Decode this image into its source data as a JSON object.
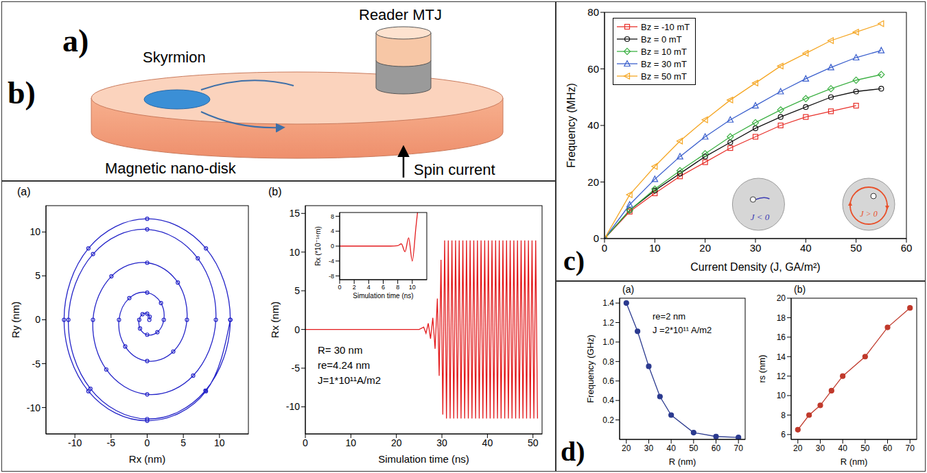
{
  "panel_letters": [
    "a)",
    "b)",
    "c)",
    "d)"
  ],
  "diagram": {
    "labels": {
      "skyrmion": "Skyrmion",
      "reader": "Reader MTJ",
      "disk": "Magnetic nano-disk",
      "current": "Spin current"
    }
  },
  "chart_data": [
    {
      "type": "line",
      "title": "(a)",
      "x_label": "Rx (nm)",
      "y_label": "Ry (nm)",
      "x": [
        0.3,
        0.35,
        0,
        -0.64,
        -1.1,
        -0.99,
        0,
        1.41,
        2.3,
        1.91,
        0,
        -2.47,
        -3.9,
        -3.04,
        0,
        3.61,
        5.5,
        4.24,
        0,
        -4.95,
        -7.5,
        -5.66,
        0,
        6.36,
        9.5,
        7,
        0,
        -7.49,
        -10.9,
        -7.85,
        0,
        8.06,
        11.5,
        8.13,
        0,
        -8.13,
        -11.5,
        -8.13,
        0,
        8.13,
        11.5
      ],
      "values": [
        0,
        0.35,
        0.7,
        0.64,
        0,
        -0.99,
        -1.7,
        -1.41,
        0,
        1.91,
        3.1,
        2.47,
        0,
        -3.04,
        -4.7,
        -3.61,
        0,
        4.24,
        6.5,
        4.95,
        0,
        -5.66,
        -8.5,
        -6.36,
        0,
        7,
        10.3,
        7.49,
        0,
        -7.85,
        -11.3,
        -8.06,
        0,
        8.13,
        11.5,
        8.13,
        0,
        -8.13,
        -11.5,
        -8.13,
        0
      ],
      "color": "#2323c8",
      "marker": "open_circle",
      "xlim": [
        -14,
        14
      ],
      "xticks": [
        -10,
        -5,
        0,
        5,
        10
      ],
      "ylim": [
        -13,
        13
      ],
      "yticks": [
        -10,
        -5,
        0,
        5,
        10
      ],
      "grid": false
    },
    {
      "type": "line",
      "title": "(b)",
      "x_label": "Simulation time (ns)",
      "y_label": "Rx (nm)",
      "x": [
        0,
        10,
        20,
        25,
        26,
        26.5,
        27,
        27.5,
        28,
        28.5,
        29,
        29.4,
        29.8,
        30.2,
        30.6,
        31.0,
        31.4,
        31.8,
        32.2,
        32.6,
        33.0,
        33.4,
        33.8,
        34.2,
        34.6,
        35.0,
        35.4,
        35.8,
        36.2,
        36.6,
        37.0,
        37.4,
        37.8,
        38.2,
        38.6,
        39.0,
        39.4,
        39.8,
        40.2,
        40.6,
        41.0,
        41.4,
        41.8,
        42.2,
        42.6,
        43.0,
        43.4,
        43.8,
        44.2,
        44.6,
        45.0,
        45.4,
        45.8,
        46.2,
        46.6,
        47.0,
        47.4,
        47.8,
        48.2,
        48.6,
        49.0,
        49.4,
        49.8,
        50.2,
        50.6,
        51.0
      ],
      "values": [
        0,
        0,
        0,
        0,
        0.3,
        -0.5,
        0.8,
        -1.2,
        1.5,
        -2.5,
        4,
        -6,
        9,
        -11,
        11.5,
        -11.5,
        11.5,
        -11.5,
        11.5,
        -11.5,
        11.5,
        -11.5,
        11.5,
        -11.5,
        11.5,
        -11.5,
        11.5,
        -11.5,
        11.5,
        -11.5,
        11.5,
        -11.5,
        11.5,
        -11.5,
        11.5,
        -11.5,
        11.5,
        -11.5,
        11.5,
        -11.5,
        11.5,
        -11.5,
        11.5,
        -11.5,
        11.5,
        -11.5,
        11.5,
        -11.5,
        11.5,
        -11.5,
        11.5,
        -11.5,
        11.5,
        -11.5,
        11.5,
        -11.5,
        11.5,
        -11.5,
        11.5,
        -11.5,
        11.5,
        -11.5,
        11.5,
        -11.5,
        11.5,
        -11.5
      ],
      "color": "#e31a1c",
      "marker": "none",
      "xlim": [
        0,
        52
      ],
      "xticks": [
        0,
        10,
        20,
        30,
        40,
        50
      ],
      "ylim": [
        -13.5,
        16
      ],
      "yticks": [
        -10,
        -5,
        0,
        5,
        10,
        15
      ],
      "grid": false,
      "annotations": [
        "R= 30 nm",
        "re=4.24 nm",
        "J=1*10¹¹A/m2"
      ],
      "inset": {
        "type": "line",
        "x_label": "Simulation time (ns)",
        "y_label": "Rx (*10⁻¹⁶m)",
        "x": [
          0,
          2,
          4,
          6,
          7,
          8,
          8.5,
          9,
          9.5,
          10,
          10.5,
          11
        ],
        "values": [
          0,
          0,
          0,
          0,
          0,
          0.1,
          0.6,
          -1.5,
          2.2,
          -4,
          5,
          14
        ],
        "color": "#e31a1c",
        "marker": "none",
        "xlim": [
          0,
          12
        ],
        "xticks": [
          0,
          2,
          4,
          6,
          8,
          10
        ],
        "ylim": [
          -9,
          9
        ],
        "yticks": [
          -8,
          -4,
          0,
          4,
          8
        ],
        "grid": false
      }
    },
    {
      "type": "line",
      "x_label": "Current Density (J, GA/m²)",
      "y_label": "Frequency (MHz)",
      "x": [
        0,
        5,
        10,
        15,
        20,
        25,
        30,
        35,
        40,
        45,
        50,
        55
      ],
      "series": [
        {
          "name": "Bz = -10 mT",
          "color": "#e8302a",
          "marker": "open_square",
          "values": [
            0,
            9.5,
            16,
            22,
            27,
            32,
            36,
            40,
            43,
            45,
            47,
            null
          ]
        },
        {
          "name": "Bz = 0 mT",
          "color": "#111111",
          "marker": "open_circle",
          "values": [
            0,
            10,
            17,
            23,
            29,
            34,
            39,
            43,
            46.5,
            50,
            52,
            53
          ]
        },
        {
          "name": "Bz = 10 mT",
          "color": "#3cb043",
          "marker": "open_diamond",
          "values": [
            0,
            10,
            17.5,
            24,
            30,
            36,
            41,
            45.5,
            49.5,
            53,
            56,
            58
          ]
        },
        {
          "name": "Bz = 30 mT",
          "color": "#3a5fcd",
          "marker": "open_triangle",
          "values": [
            0,
            12,
            21,
            29,
            36,
            42,
            47,
            52,
            56.5,
            60.5,
            64,
            66.5
          ]
        },
        {
          "name": "Bz = 50 mT",
          "color": "#f5a623",
          "marker": "open_triangle_left",
          "values": [
            0,
            15.5,
            25.5,
            34.5,
            42,
            49,
            55,
            61,
            65.5,
            70,
            73,
            76
          ]
        }
      ],
      "xlim": [
        0,
        60
      ],
      "xticks": [
        0,
        10,
        20,
        30,
        40,
        50,
        60
      ],
      "ylim": [
        0,
        80
      ],
      "yticks": [
        0,
        20,
        40,
        60,
        80
      ],
      "grid": false,
      "legend": "upper left",
      "annotations": [
        "J < 0",
        "J > 0"
      ]
    },
    {
      "type": "line",
      "title": "(a)",
      "x_label": "R (nm)",
      "y_label": "Frequency (GHz)",
      "x": [
        20,
        25,
        30,
        35,
        40,
        50,
        60,
        70
      ],
      "values": [
        1.4,
        1.11,
        0.75,
        0.44,
        0.25,
        0.07,
        0.03,
        0.02
      ],
      "color": "#2b3a8f",
      "marker": "circle",
      "xlim": [
        17,
        73
      ],
      "xticks": [
        20,
        30,
        40,
        50,
        60,
        70
      ],
      "ylim": [
        0,
        1.45
      ],
      "yticks": [
        0.2,
        0.4,
        0.6,
        0.8,
        {
          "value": 1,
          "label": "1.0"
        },
        1.2,
        1.4
      ],
      "grid": false,
      "annotations": [
        "re=2 nm",
        "J =2*10¹¹ A/m2"
      ]
    },
    {
      "type": "line",
      "title": "(b)",
      "x_label": "R (nm)",
      "y_label": "rs (nm)",
      "x": [
        20,
        25,
        30,
        35,
        40,
        50,
        60,
        70
      ],
      "values": [
        6.5,
        8,
        9,
        10.5,
        12,
        14,
        17,
        19
      ],
      "color": "#c0392b",
      "marker": "circle",
      "xlim": [
        17,
        73
      ],
      "xticks": [
        20,
        30,
        40,
        50,
        60,
        70
      ],
      "ylim": [
        5.5,
        20
      ],
      "yticks": [
        6,
        8,
        10,
        12,
        14,
        16,
        18,
        20
      ],
      "grid": false
    }
  ]
}
